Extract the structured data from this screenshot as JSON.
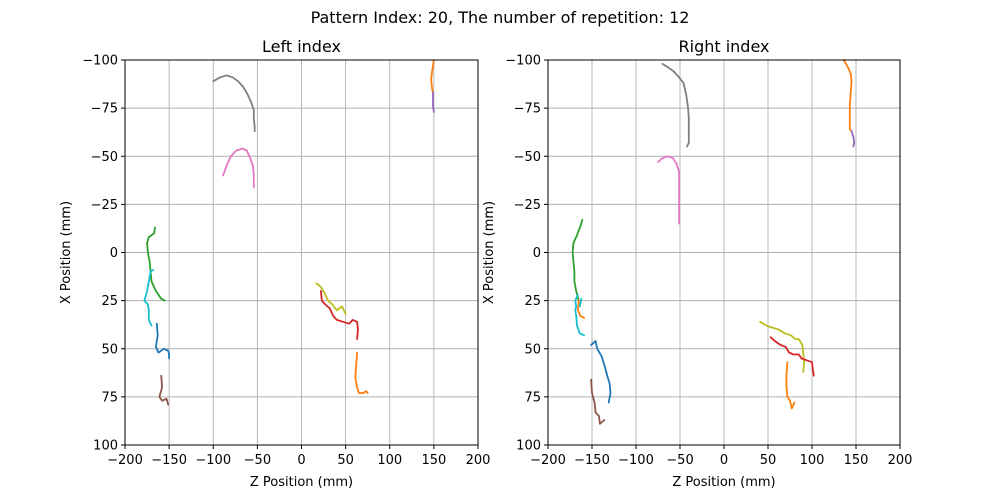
{
  "chart_data": {
    "type": "line",
    "title": "Pattern Index: 20, The number of repetition: 12",
    "colors": [
      "#1f77b4",
      "#ff7f0e",
      "#2ca02c",
      "#d62728",
      "#9467bd",
      "#8c564b",
      "#e377c2",
      "#7f7f7f",
      "#bcbd22",
      "#17becf"
    ],
    "panels": [
      {
        "title": "Left index",
        "xlabel": "Z Position (mm)",
        "ylabel": "X Position (mm)",
        "xlim": [
          -200,
          200
        ],
        "ylim": [
          100,
          -100
        ],
        "xticks": [
          -200,
          -150,
          -100,
          -50,
          0,
          50,
          100,
          150,
          200
        ],
        "yticks": [
          -100,
          -75,
          -50,
          -25,
          0,
          25,
          50,
          75,
          100
        ],
        "grid": true,
        "series": [
          {
            "color": "#7f7f7f",
            "points": [
              [
                -100,
                -89
              ],
              [
                -92,
                -91
              ],
              [
                -85,
                -92
              ],
              [
                -78,
                -91
              ],
              [
                -72,
                -89
              ],
              [
                -66,
                -86
              ],
              [
                -61,
                -82
              ],
              [
                -57,
                -78
              ],
              [
                -54,
                -74
              ],
              [
                -54,
                -70
              ],
              [
                -53,
                -65
              ],
              [
                -53,
                -63
              ]
            ]
          },
          {
            "color": "#e377c2",
            "points": [
              [
                -89,
                -40
              ],
              [
                -85,
                -45
              ],
              [
                -80,
                -50
              ],
              [
                -74,
                -53
              ],
              [
                -67,
                -54
              ],
              [
                -62,
                -53
              ],
              [
                -58,
                -49
              ],
              [
                -55,
                -45
              ],
              [
                -54,
                -40
              ],
              [
                -54,
                -34
              ]
            ]
          },
          {
            "color": "#2ca02c",
            "points": [
              [
                -166,
                -13
              ],
              [
                -167,
                -10
              ],
              [
                -173,
                -8
              ],
              [
                -175,
                -5
              ],
              [
                -174,
                0
              ],
              [
                -172,
                5
              ],
              [
                -171,
                10
              ],
              [
                -170,
                15
              ],
              [
                -165,
                20
              ],
              [
                -159,
                24
              ],
              [
                -155,
                25
              ]
            ]
          },
          {
            "color": "#17becf",
            "points": [
              [
                -168,
                9
              ],
              [
                -171,
                10
              ],
              [
                -173,
                15
              ],
              [
                -175,
                20
              ],
              [
                -178,
                25
              ],
              [
                -174,
                27
              ],
              [
                -173,
                30
              ],
              [
                -173,
                35
              ],
              [
                -170,
                38
              ]
            ]
          },
          {
            "color": "#1f77b4",
            "points": [
              [
                -164,
                37
              ],
              [
                -163,
                43
              ],
              [
                -165,
                49
              ],
              [
                -162,
                52
              ],
              [
                -159,
                51
              ],
              [
                -156,
                50
              ],
              [
                -151,
                51
              ],
              [
                -150,
                53
              ],
              [
                -150,
                55
              ]
            ]
          },
          {
            "color": "#8c564b",
            "points": [
              [
                -159,
                64
              ],
              [
                -158,
                70
              ],
              [
                -161,
                75
              ],
              [
                -158,
                77
              ],
              [
                -153,
                76
              ],
              [
                -151,
                79
              ]
            ]
          },
          {
            "color": "#bcbd22",
            "points": [
              [
                17,
                16
              ],
              [
                22,
                18
              ],
              [
                26,
                21
              ],
              [
                30,
                25
              ],
              [
                35,
                27
              ],
              [
                40,
                30
              ],
              [
                46,
                28
              ],
              [
                50,
                32
              ]
            ]
          },
          {
            "color": "#d62728",
            "points": [
              [
                22,
                20
              ],
              [
                23,
                25
              ],
              [
                27,
                27
              ],
              [
                32,
                29
              ],
              [
                36,
                33
              ],
              [
                40,
                35
              ],
              [
                47,
                36
              ],
              [
                54,
                37
              ],
              [
                58,
                35
              ],
              [
                63,
                36
              ],
              [
                64,
                40
              ],
              [
                63,
                45
              ]
            ]
          },
          {
            "color": "#ff7f0e",
            "points": [
              [
                63,
                52
              ],
              [
                62,
                58
              ],
              [
                61,
                65
              ],
              [
                63,
                70
              ],
              [
                65,
                73
              ],
              [
                70,
                73
              ],
              [
                73,
                72
              ],
              [
                75,
                73
              ]
            ]
          },
          {
            "color": "#ff7f0e",
            "points": [
              [
                150,
                -100
              ],
              [
                149,
                -97
              ],
              [
                148,
                -94
              ],
              [
                147,
                -90
              ],
              [
                148,
                -85
              ],
              [
                149,
                -83
              ]
            ]
          },
          {
            "color": "#9467bd",
            "points": [
              [
                149,
                -83
              ],
              [
                149,
                -79
              ],
              [
                149,
                -76
              ],
              [
                150,
                -73
              ]
            ]
          }
        ]
      },
      {
        "title": "Right index",
        "xlabel": "Z Position (mm)",
        "ylabel": "X Position (mm)",
        "xlim": [
          -200,
          200
        ],
        "ylim": [
          100,
          -100
        ],
        "xticks": [
          -200,
          -150,
          -100,
          -50,
          0,
          50,
          100,
          150,
          200
        ],
        "yticks": [
          -100,
          -75,
          -50,
          -25,
          0,
          25,
          50,
          75,
          100
        ],
        "grid": true,
        "series": [
          {
            "color": "#7f7f7f",
            "points": [
              [
                -70,
                -98
              ],
              [
                -63,
                -96
              ],
              [
                -57,
                -94
              ],
              [
                -51,
                -91
              ],
              [
                -46,
                -88
              ],
              [
                -43,
                -82
              ],
              [
                -41,
                -76
              ],
              [
                -40,
                -70
              ],
              [
                -40,
                -62
              ],
              [
                -40,
                -57
              ],
              [
                -42,
                -55
              ]
            ]
          },
          {
            "color": "#e377c2",
            "points": [
              [
                -75,
                -47
              ],
              [
                -70,
                -49
              ],
              [
                -64,
                -50
              ],
              [
                -58,
                -49
              ],
              [
                -54,
                -46
              ],
              [
                -51,
                -42
              ],
              [
                -51,
                -30
              ],
              [
                -51,
                -20
              ],
              [
                -51,
                -15
              ]
            ]
          },
          {
            "color": "#2ca02c",
            "points": [
              [
                -161,
                -17
              ],
              [
                -163,
                -14
              ],
              [
                -167,
                -9
              ],
              [
                -171,
                -5
              ],
              [
                -172,
                0
              ],
              [
                -171,
                5
              ],
              [
                -170,
                10
              ],
              [
                -170,
                15
              ],
              [
                -168,
                20
              ],
              [
                -165,
                25
              ]
            ]
          },
          {
            "color": "#ff7f0e",
            "points": [
              [
                -165,
                25
              ],
              [
                -166,
                30
              ],
              [
                -163,
                33
              ],
              [
                -159,
                34
              ]
            ]
          },
          {
            "color": "#17becf",
            "points": [
              [
                -166,
                22
              ],
              [
                -169,
                25
              ],
              [
                -168,
                28
              ],
              [
                -169,
                30
              ],
              [
                -168,
                33
              ],
              [
                -167,
                38
              ],
              [
                -164,
                42
              ],
              [
                -159,
                43
              ]
            ]
          },
          {
            "color": "#17becf",
            "points": [
              [
                -164,
                28
              ],
              [
                -162,
                24
              ]
            ]
          },
          {
            "color": "#1f77b4",
            "points": [
              [
                -151,
                48
              ],
              [
                -146,
                46
              ],
              [
                -144,
                50
              ],
              [
                -139,
                54
              ],
              [
                -135,
                60
              ],
              [
                -132,
                65
              ],
              [
                -130,
                68
              ],
              [
                -129,
                73
              ],
              [
                -131,
                78
              ]
            ]
          },
          {
            "color": "#8c564b",
            "points": [
              [
                -151,
                66
              ],
              [
                -150,
                73
              ],
              [
                -147,
                78
              ],
              [
                -146,
                83
              ],
              [
                -142,
                85
              ],
              [
                -141,
                89
              ],
              [
                -136,
                87
              ]
            ]
          },
          {
            "color": "#bcbd22",
            "points": [
              [
                41,
                36
              ],
              [
                48,
                38
              ],
              [
                55,
                39
              ],
              [
                62,
                40
              ],
              [
                69,
                42
              ],
              [
                76,
                43
              ],
              [
                81,
                45
              ],
              [
                85,
                45
              ],
              [
                89,
                48
              ],
              [
                90,
                52
              ],
              [
                91,
                57
              ],
              [
                90,
                62
              ]
            ]
          },
          {
            "color": "#d62728",
            "points": [
              [
                53,
                44
              ],
              [
                58,
                46
              ],
              [
                64,
                48
              ],
              [
                70,
                49
              ],
              [
                74,
                52
              ],
              [
                79,
                53
              ],
              [
                85,
                53
              ],
              [
                88,
                55
              ],
              [
                94,
                56
              ],
              [
                100,
                57
              ],
              [
                101,
                61
              ],
              [
                102,
                64
              ]
            ]
          },
          {
            "color": "#ff7f0e",
            "points": [
              [
                72,
                57
              ],
              [
                71,
                63
              ],
              [
                71,
                70
              ],
              [
                72,
                75
              ],
              [
                75,
                77
              ],
              [
                77,
                81
              ],
              [
                80,
                78
              ]
            ]
          },
          {
            "color": "#ff7f0e",
            "points": [
              [
                136,
                -100
              ],
              [
                140,
                -97
              ],
              [
                144,
                -93
              ],
              [
                145,
                -89
              ],
              [
                144,
                -83
              ],
              [
                143,
                -77
              ],
              [
                143,
                -69
              ],
              [
                143,
                -64
              ],
              [
                145,
                -63
              ]
            ]
          },
          {
            "color": "#9467bd",
            "points": [
              [
                145,
                -63
              ],
              [
                147,
                -60
              ],
              [
                148,
                -57
              ],
              [
                147,
                -55
              ]
            ]
          }
        ]
      }
    ]
  }
}
